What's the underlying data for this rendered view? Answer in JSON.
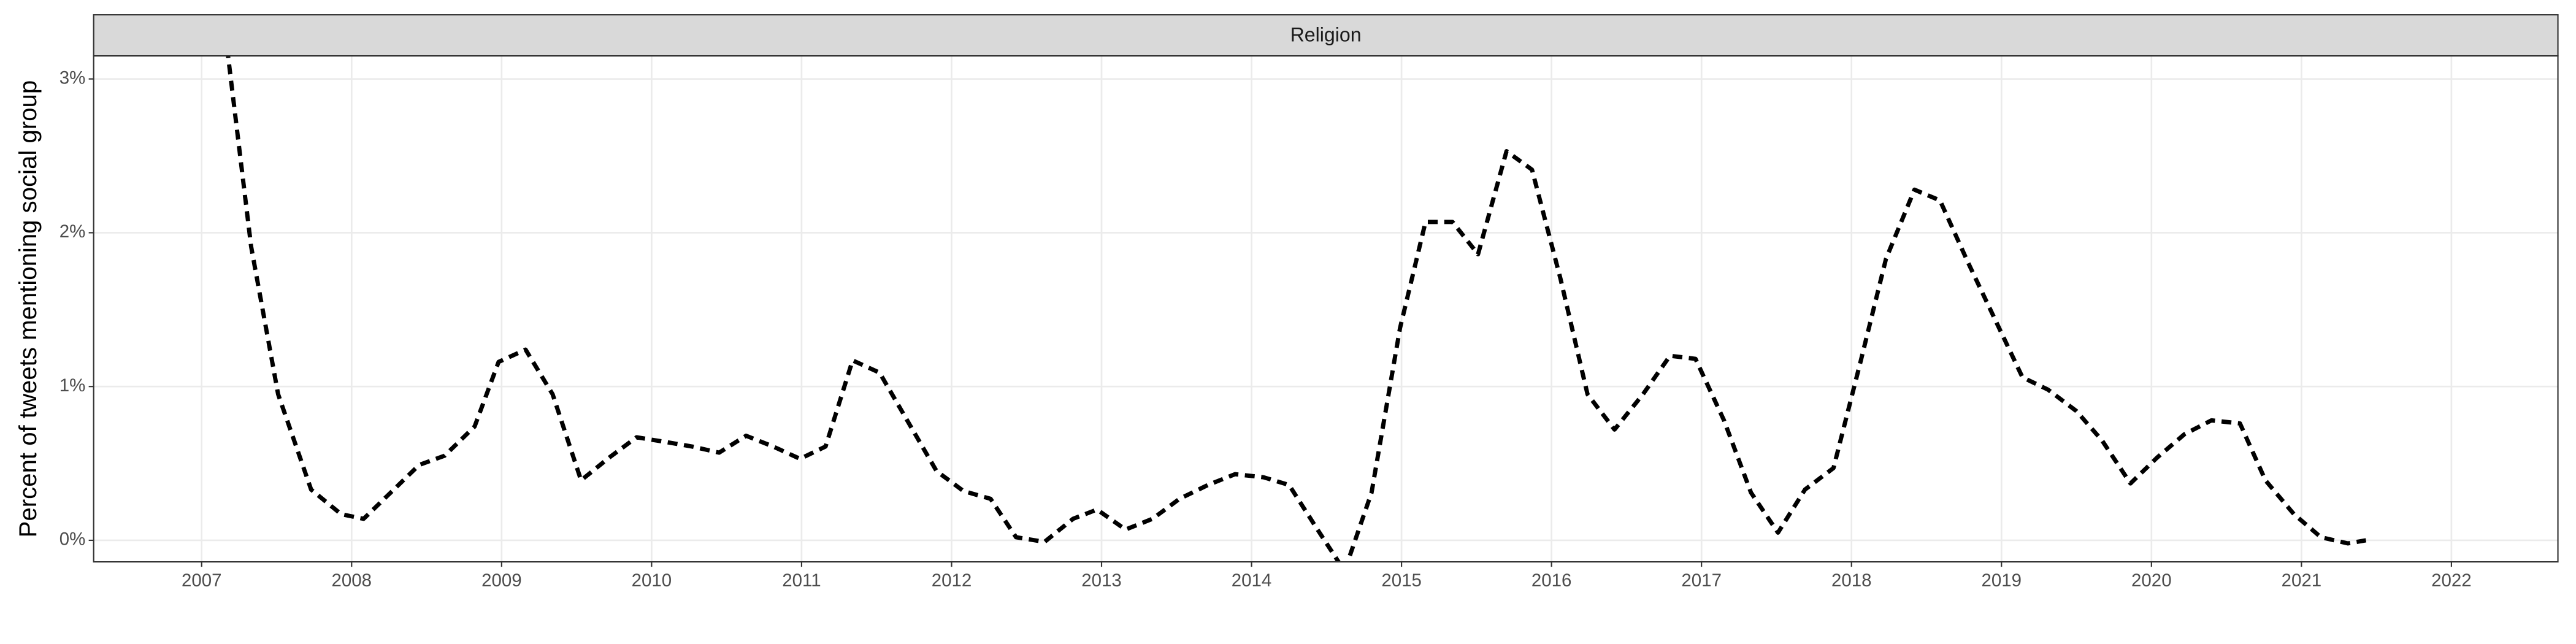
{
  "chart_data": {
    "type": "line",
    "strip_label": "Religion",
    "y_label": "Percent of tweets mentioning social group",
    "xlim": [
      2006.28,
      2022.71
    ],
    "ylim": [
      -0.14,
      3.15
    ],
    "xticks": [
      2007,
      2008,
      2009,
      2010,
      2011,
      2012,
      2013,
      2014,
      2015,
      2016,
      2017,
      2018,
      2019,
      2020,
      2021,
      2022
    ],
    "yticks": [
      {
        "value": 0,
        "label": "0%"
      },
      {
        "value": 1,
        "label": "1%"
      },
      {
        "value": 2,
        "label": "2%"
      },
      {
        "value": 3,
        "label": "3%"
      }
    ],
    "grid": true,
    "x": [
      2007.17,
      2007.33,
      2007.51,
      2007.73,
      2007.93,
      2008.08,
      2008.26,
      2008.45,
      2008.62,
      2008.82,
      2008.98,
      2009.16,
      2009.34,
      2009.53,
      2009.72,
      2009.9,
      2010.09,
      2010.27,
      2010.45,
      2010.63,
      2010.81,
      2010.99,
      2011.16,
      2011.34,
      2011.52,
      2011.71,
      2011.9,
      2012.08,
      2012.26,
      2012.43,
      2012.62,
      2012.81,
      2012.97,
      2013.16,
      2013.34,
      2013.52,
      2013.71,
      2013.89,
      2014.08,
      2014.25,
      2014.44,
      2014.62,
      2014.8,
      2014.99,
      2015.16,
      2015.34,
      2015.51,
      2015.7,
      2015.87,
      2016.06,
      2016.24,
      2016.42,
      2016.61,
      2016.79,
      2016.96,
      2017.15,
      2017.33,
      2017.51,
      2017.69,
      2017.88,
      2018.06,
      2018.23,
      2018.42,
      2018.59,
      2018.78,
      2018.96,
      2019.14,
      2019.31,
      2019.5,
      2019.67,
      2019.86,
      2020.04,
      2020.22,
      2020.4,
      2020.59,
      2020.76,
      2020.95,
      2021.13,
      2021.31,
      2021.43
    ],
    "series": [
      {
        "color": "#000000",
        "values": [
          3.2,
          1.91,
          0.95,
          0.33,
          0.17,
          0.14,
          0.31,
          0.49,
          0.55,
          0.74,
          1.16,
          1.24,
          0.95,
          0.39,
          0.54,
          0.67,
          0.64,
          0.61,
          0.57,
          0.68,
          0.61,
          0.53,
          0.61,
          1.17,
          1.09,
          0.77,
          0.45,
          0.32,
          0.27,
          0.02,
          -0.01,
          0.14,
          0.2,
          0.07,
          0.14,
          0.27,
          0.36,
          0.43,
          0.41,
          0.36,
          0.07,
          -0.2,
          0.31,
          1.38,
          2.07,
          2.07,
          1.86,
          2.53,
          2.41,
          1.7,
          0.95,
          0.72,
          0.95,
          1.2,
          1.18,
          0.78,
          0.31,
          0.05,
          0.33,
          0.47,
          1.16,
          1.83,
          2.28,
          2.21,
          1.8,
          1.43,
          1.06,
          0.98,
          0.84,
          0.65,
          0.37,
          0.54,
          0.69,
          0.78,
          0.76,
          0.39,
          0.17,
          0.02,
          -0.02,
          0.0
        ]
      }
    ]
  }
}
